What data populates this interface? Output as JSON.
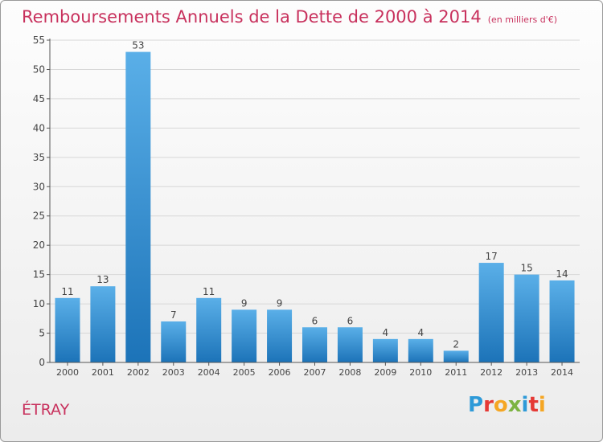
{
  "header": {
    "title": "Remboursements Annuels de la Dette de 2000 à 2014",
    "unit": "(en milliers d'€)"
  },
  "footer": {
    "commune": "ÉTRAY",
    "logo_letters": [
      "P",
      "r",
      "o",
      "x",
      "i",
      "t",
      "i"
    ],
    "logo_colors": [
      "#2e9ad8",
      "#e53935",
      "#f5a623",
      "#7cb342",
      "#2e9ad8",
      "#e53935",
      "#f5a623"
    ]
  },
  "colors": {
    "title": "#c8315d",
    "bar_top": "#5aafe8",
    "bar_bottom": "#1c73b8",
    "gridline": "#d7d7d7",
    "axis": "#555555"
  },
  "chart_data": {
    "type": "bar",
    "categories": [
      "2000",
      "2001",
      "2002",
      "2003",
      "2004",
      "2005",
      "2006",
      "2007",
      "2008",
      "2009",
      "2010",
      "2011",
      "2012",
      "2013",
      "2014"
    ],
    "values": [
      11,
      13,
      53,
      7,
      11,
      9,
      9,
      6,
      6,
      4,
      4,
      2,
      17,
      15,
      14
    ],
    "ylim": [
      0,
      55
    ],
    "yticks": [
      0,
      5,
      10,
      15,
      20,
      25,
      30,
      35,
      40,
      45,
      50,
      55
    ],
    "grid": true,
    "data_labels": true
  }
}
